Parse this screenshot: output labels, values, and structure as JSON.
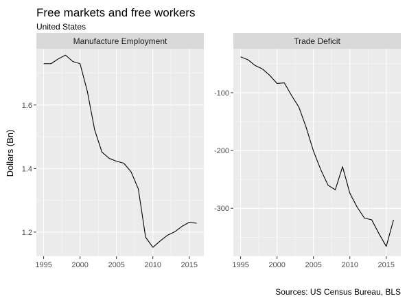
{
  "figure": {
    "title": "Free markets and free workers",
    "subtitle": "United States",
    "caption": "Sources: US Census Bureau, BLS",
    "ylabel": "Dollars (Bn)"
  },
  "colors": {
    "panel_bg": "#ebebeb",
    "strip_bg": "#d9d9d9",
    "grid_major": "#ffffff",
    "line": "#000000",
    "tick_text": "#4d4d4d",
    "text": "#000000"
  },
  "chart_data": [
    {
      "type": "line",
      "title": "Manufacture Employment",
      "xlabel": "",
      "ylabel": "Dollars (Bn)",
      "xlim": [
        1994.0,
        2017.0
      ],
      "ylim": [
        1.124,
        1.777
      ],
      "x_ticks": [
        1995,
        2000,
        2005,
        2010,
        2015
      ],
      "y_ticks": [
        1.2,
        1.4,
        1.6
      ],
      "y_tick_labels": [
        "1.2",
        "1.4",
        "1.6"
      ],
      "grid": true,
      "series": [
        {
          "x": [
            1995,
            1996,
            1997,
            1998,
            1999,
            2000,
            2001,
            2002,
            2003,
            2004,
            2005,
            2006,
            2007,
            2008,
            2009,
            2010,
            2011,
            2012,
            2013,
            2014,
            2015,
            2016
          ],
          "values": [
            1.73,
            1.73,
            1.745,
            1.757,
            1.737,
            1.73,
            1.643,
            1.522,
            1.452,
            1.432,
            1.423,
            1.417,
            1.39,
            1.336,
            1.184,
            1.152,
            1.172,
            1.19,
            1.201,
            1.218,
            1.231,
            1.228
          ]
        }
      ]
    },
    {
      "type": "line",
      "title": "Trade Deficit",
      "xlabel": "",
      "ylabel": "",
      "xlim": [
        1994.0,
        2017.0
      ],
      "ylim": [
        -383.0,
        -24.0
      ],
      "x_ticks": [
        1995,
        2000,
        2005,
        2010,
        2015
      ],
      "y_ticks": [
        -300,
        -200,
        -100
      ],
      "y_tick_labels": [
        "-300",
        "-200",
        "-100"
      ],
      "grid": true,
      "series": [
        {
          "x": [
            1995,
            1996,
            1997,
            1998,
            1999,
            2000,
            2001,
            2002,
            2003,
            2004,
            2005,
            2006,
            2007,
            2008,
            2009,
            2010,
            2011,
            2012,
            2013,
            2014,
            2015,
            2016
          ],
          "values": [
            -38,
            -43,
            -53,
            -59,
            -70,
            -84,
            -83,
            -105,
            -125,
            -160,
            -201,
            -233,
            -260,
            -268,
            -228,
            -274,
            -298,
            -317,
            -320,
            -344,
            -366,
            -320
          ]
        }
      ]
    }
  ]
}
